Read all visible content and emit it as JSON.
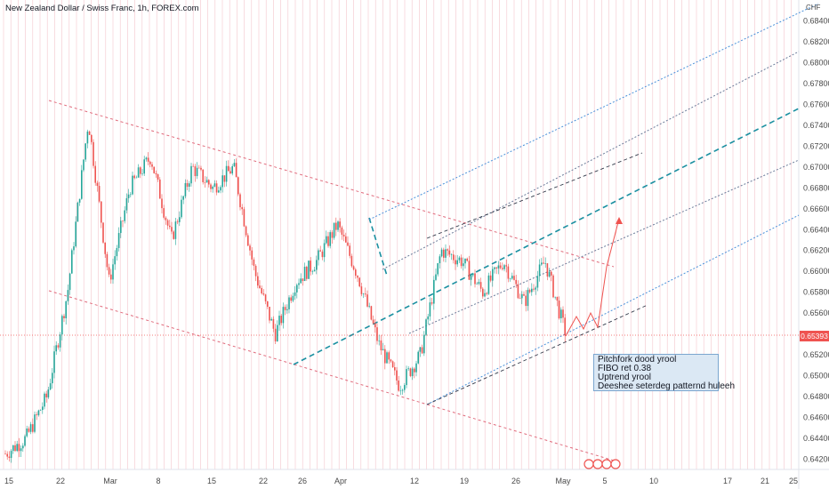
{
  "title": "New Zealand Dollar / Swiss Franc, 1h, FOREX.com",
  "currency_label": "CHF",
  "current_price": "0.65393",
  "note_lines": [
    "Pitchfork dood yrool",
    "FIBO ret 0.38",
    "Uptrend yrool",
    "Deeshee seterdeg patternd huleeh"
  ],
  "colors": {
    "up": "#26a69a",
    "down": "#ef5350",
    "pitchfork": "#1a8fa0",
    "channel": "#e06b7c",
    "fib": "#4a90d9",
    "grid": "#f3c6cc"
  },
  "chart_data": {
    "type": "candlestick",
    "title": "New Zealand Dollar / Swiss Franc, 1h, FOREX.com",
    "ylabel": "CHF",
    "ylim": [
      0.641,
      0.685
    ],
    "y_ticks": [
      "0.68400",
      "0.68200",
      "0.68000",
      "0.67800",
      "0.67600",
      "0.67400",
      "0.67200",
      "0.67000",
      "0.66800",
      "0.66600",
      "0.66400",
      "0.66200",
      "0.66000",
      "0.65800",
      "0.65600",
      "0.65400",
      "0.65200",
      "0.65000",
      "0.64800",
      "0.64600",
      "0.64400",
      "0.64200"
    ],
    "x_ticks": [
      "15",
      "22",
      "Mar",
      "8",
      "15",
      "22",
      "26",
      "Apr",
      "12",
      "19",
      "26",
      "May",
      "5",
      "10",
      "17",
      "21",
      "25"
    ],
    "last_price": 0.65393,
    "series": [
      {
        "x": [
          "Feb 15",
          "Feb 18",
          "Feb 22",
          "Feb 24",
          "Feb 26",
          "Mar 1",
          "Mar 5",
          "Mar 8",
          "Mar 11",
          "Mar 15",
          "Mar 18",
          "Mar 22",
          "Mar 24",
          "Mar 26",
          "Mar 29",
          "Apr 1",
          "Apr 5",
          "Apr 7",
          "Apr 9",
          "Apr 12",
          "Apr 14",
          "Apr 16",
          "Apr 19",
          "Apr 21",
          "Apr 23",
          "Apr 26",
          "Apr 28",
          "Apr 30"
        ],
        "values": [
          0.6425,
          0.644,
          0.648,
          0.658,
          0.6745,
          0.659,
          0.668,
          0.671,
          0.663,
          0.67,
          0.668,
          0.67,
          0.66,
          0.654,
          0.659,
          0.661,
          0.6645,
          0.6595,
          0.653,
          0.649,
          0.652,
          0.662,
          0.661,
          0.658,
          0.661,
          0.657,
          0.661,
          0.654
        ]
      }
    ]
  }
}
